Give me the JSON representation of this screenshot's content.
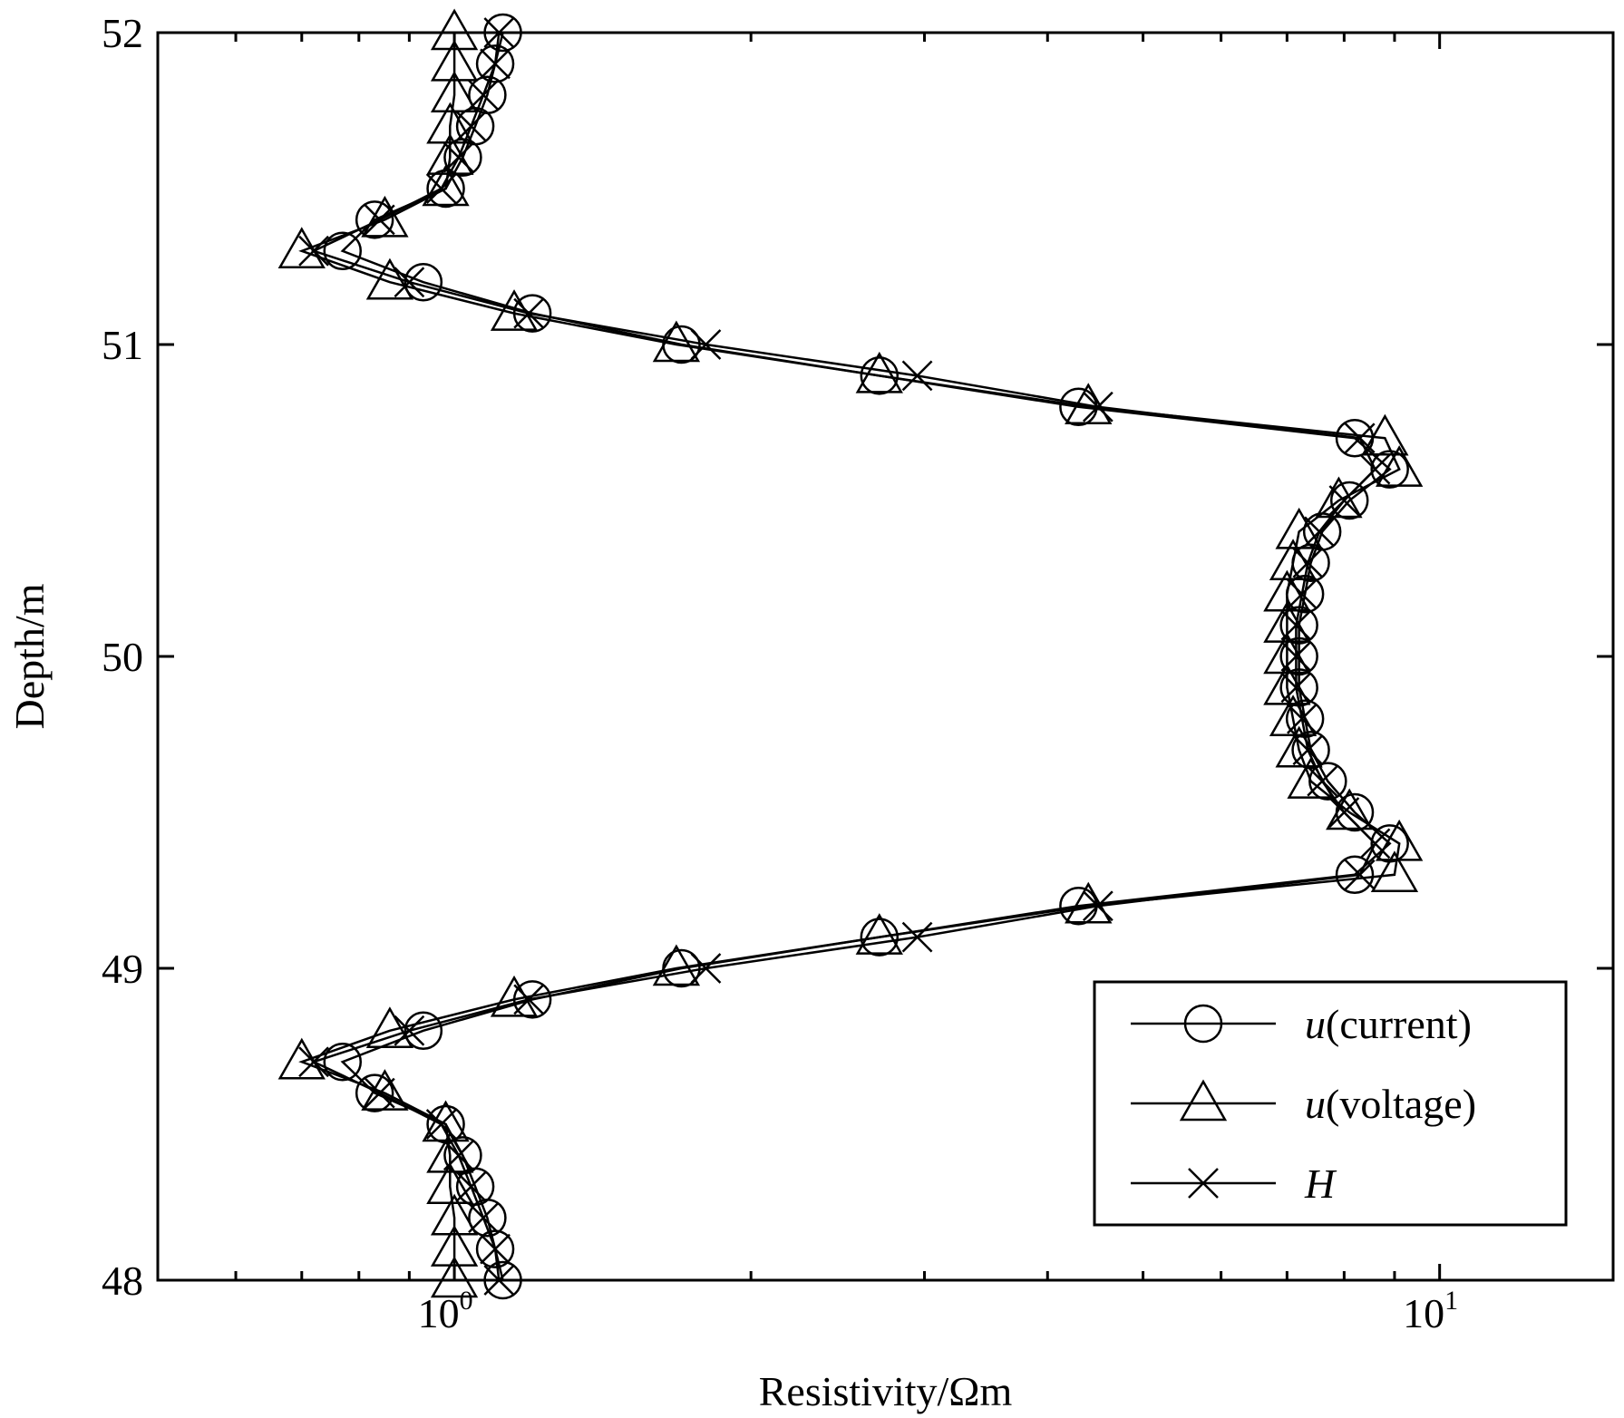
{
  "chart_data": {
    "type": "line",
    "xlabel": "Resistivity/Ωm",
    "ylabel": "Depth/m",
    "xscale": "log",
    "xlim": [
      0.5,
      15
    ],
    "ylim": [
      48,
      52
    ],
    "grid": false,
    "legend_position": "bottom-right",
    "x_ticks": [
      {
        "value": 1,
        "base": "10",
        "exp": "0"
      },
      {
        "value": 10,
        "base": "10",
        "exp": "1"
      }
    ],
    "y_ticks": [
      "48",
      "49",
      "50",
      "51",
      "52"
    ],
    "depth": [
      48.0,
      48.1,
      48.2,
      48.3,
      48.4,
      48.5,
      48.6,
      48.7,
      48.8,
      48.9,
      49.0,
      49.1,
      49.2,
      49.3,
      49.4,
      49.5,
      49.6,
      49.7,
      49.8,
      49.9,
      50.0,
      50.1,
      50.2,
      50.3,
      50.4,
      50.5,
      50.6,
      50.7,
      50.8,
      50.9,
      51.0,
      51.1,
      51.2,
      51.3,
      51.4,
      51.5,
      51.6,
      51.7,
      51.8,
      51.9,
      52.0
    ],
    "series": [
      {
        "name": "u(current)",
        "name_italic": "u",
        "name_rest": "(current)",
        "marker": "circle",
        "x": [
          1.12,
          1.1,
          1.08,
          1.05,
          1.02,
          0.98,
          0.83,
          0.77,
          0.93,
          1.2,
          1.7,
          2.7,
          4.3,
          8.2,
          8.9,
          8.2,
          7.7,
          7.4,
          7.3,
          7.2,
          7.2,
          7.2,
          7.3,
          7.4,
          7.6,
          8.1,
          8.9,
          8.2,
          4.3,
          2.7,
          1.7,
          1.2,
          0.93,
          0.77,
          0.83,
          0.98,
          1.02,
          1.05,
          1.08,
          1.1,
          1.12
        ]
      },
      {
        "name": "u(voltage)",
        "name_italic": "u",
        "name_rest": "(voltage)",
        "marker": "triangle",
        "x": [
          1.0,
          1.0,
          1.0,
          0.99,
          0.99,
          0.98,
          0.85,
          0.7,
          0.86,
          1.15,
          1.68,
          2.7,
          4.4,
          9.0,
          9.1,
          8.1,
          7.4,
          7.2,
          7.1,
          7.0,
          7.0,
          7.0,
          7.0,
          7.1,
          7.2,
          7.9,
          9.1,
          8.8,
          4.4,
          2.7,
          1.68,
          1.15,
          0.86,
          0.7,
          0.85,
          0.98,
          0.99,
          0.99,
          1.0,
          1.0,
          1.0
        ]
      },
      {
        "name": "H",
        "marker": "x",
        "x": [
          1.11,
          1.1,
          1.07,
          1.04,
          1.01,
          0.97,
          0.84,
          0.72,
          0.9,
          1.19,
          1.8,
          2.95,
          4.5,
          8.3,
          8.6,
          8.0,
          7.6,
          7.35,
          7.25,
          7.15,
          7.15,
          7.15,
          7.25,
          7.35,
          7.55,
          8.0,
          8.6,
          8.3,
          4.5,
          2.95,
          1.8,
          1.19,
          0.9,
          0.72,
          0.84,
          0.97,
          1.01,
          1.04,
          1.07,
          1.1,
          1.11
        ]
      }
    ]
  }
}
